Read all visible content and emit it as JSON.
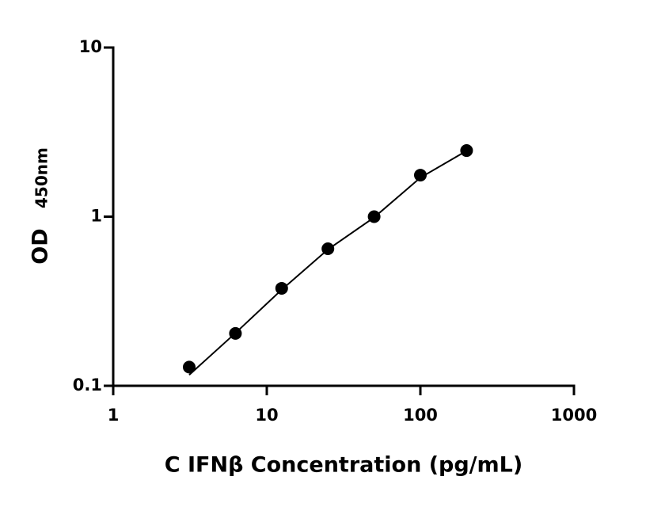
{
  "chart_data": {
    "type": "scatter",
    "xlabel": "C IFNβ Concentration (pg/mL)",
    "ylabel": "OD",
    "ylabel_sub": "450nm",
    "xscale": "log",
    "yscale": "log",
    "grid": false,
    "xlim": [
      1,
      1000
    ],
    "xticks": [
      1,
      10,
      100,
      1000
    ],
    "ylim": [
      0.1,
      10
    ],
    "yticks": [
      0.1,
      1,
      10
    ],
    "series": [
      {
        "mode": "markers",
        "color": "#000000",
        "x": [
          3.125,
          6.25,
          12.5,
          25,
          50,
          100,
          200
        ],
        "values": [
          0.129,
          0.204,
          0.377,
          0.646,
          1.0,
          1.76,
          2.46
        ]
      },
      {
        "mode": "line",
        "color": "#000000",
        "x": [
          3.125,
          6.25,
          12.5,
          25,
          50,
          100,
          200
        ],
        "values": [
          0.116,
          0.205,
          0.37,
          0.64,
          0.99,
          1.7,
          2.45
        ]
      }
    ]
  }
}
